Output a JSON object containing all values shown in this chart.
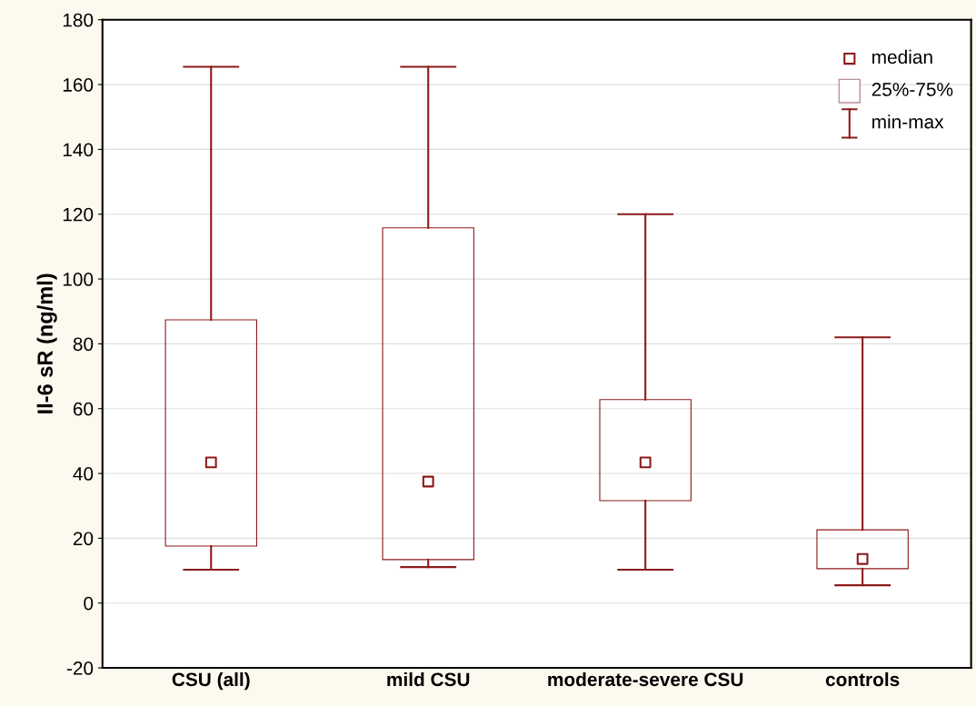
{
  "chart_data": {
    "type": "box",
    "ylabel": "Il-6 sR (ng/ml)",
    "categories": [
      "CSU (all)",
      "mild CSU",
      "moderate-severe CSU",
      "controls"
    ],
    "series": [
      {
        "color": "#8b1a1a",
        "boxes": [
          {
            "low": 10.3,
            "q1": 17.6,
            "median": 43.4,
            "q3": 87.4,
            "high": 165.5
          },
          {
            "low": 11.1,
            "q1": 13.4,
            "median": 37.5,
            "q3": 115.8,
            "high": 165.5
          },
          {
            "low": 10.3,
            "q1": 31.6,
            "median": 43.4,
            "q3": 62.8,
            "high": 120
          },
          {
            "low": 5.5,
            "q1": 10.6,
            "median": 13.6,
            "q3": 22.6,
            "high": 82
          }
        ]
      }
    ],
    "ylim": [
      -20,
      180
    ],
    "yticks": [
      -20,
      0,
      20,
      40,
      60,
      80,
      100,
      120,
      140,
      160,
      180
    ],
    "grid": "y",
    "marker": "square",
    "annotations": [
      "median",
      "25%-75%",
      "min-max"
    ]
  }
}
